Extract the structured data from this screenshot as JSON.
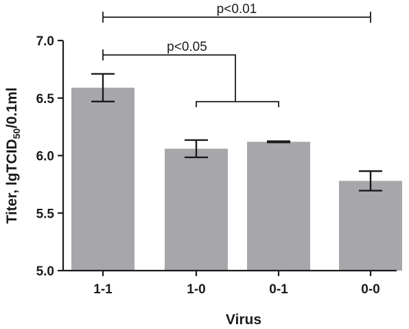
{
  "chart_data": {
    "type": "bar",
    "categories": [
      "1-1",
      "1-0",
      "0-1",
      "0-0"
    ],
    "values": [
      6.59,
      6.06,
      6.12,
      5.78
    ],
    "errors": [
      0.12,
      0.075,
      0.005,
      0.085
    ],
    "xlabel": "Virus",
    "ylabel_main": "Titer, lgTCID",
    "ylabel_sub": "50",
    "ylabel_tail": "/0.1ml",
    "ylim": [
      5.0,
      7.0
    ],
    "yticks": [
      5.0,
      5.5,
      6.0,
      6.5,
      7.0
    ],
    "ytick_labels": [
      "5.0",
      "5.5",
      "6.0",
      "6.5",
      "7.0"
    ],
    "grid": false,
    "annotations": [
      {
        "text": "p<0.01",
        "from": "1-1",
        "to": "0-0"
      },
      {
        "text": "p<0.05",
        "from": "1-1",
        "to_group": [
          "1-0",
          "0-1"
        ]
      }
    ],
    "colors": {
      "bar": "#a7a6ab",
      "ink": "#1a1a1a"
    }
  }
}
